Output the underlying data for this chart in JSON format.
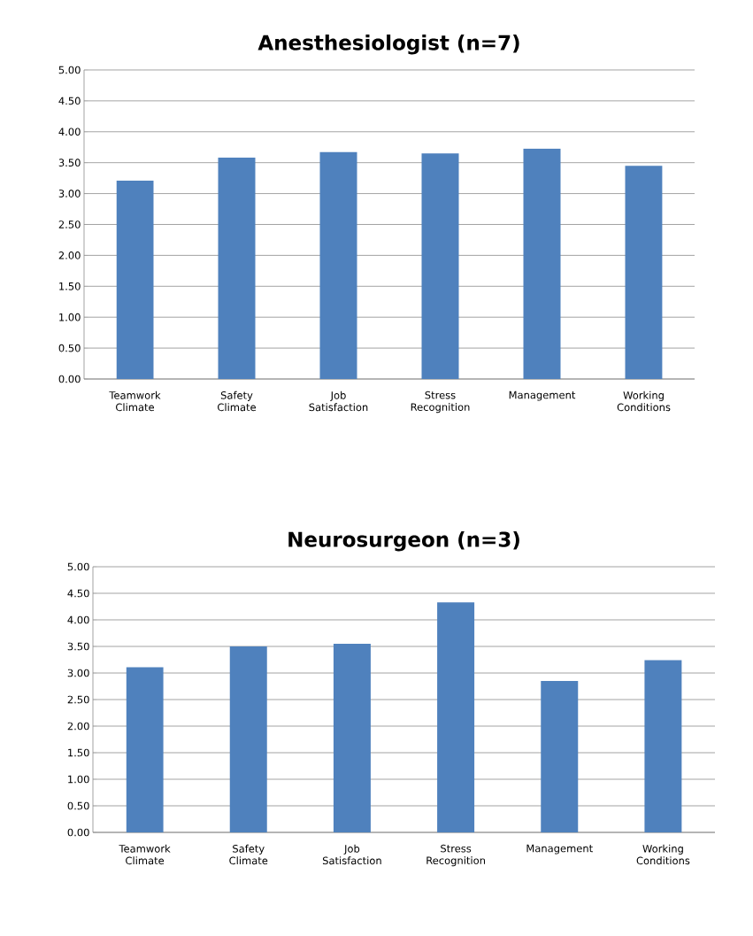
{
  "chart_data": [
    {
      "type": "bar",
      "title": "Anesthesiologist (n=7)",
      "categories": [
        "Teamwork Climate",
        "Safety Climate",
        "Job Satisfaction",
        "Stress Recognition",
        "Management",
        "Working Conditions"
      ],
      "values": [
        3.21,
        3.58,
        3.67,
        3.65,
        3.73,
        3.45
      ],
      "color": "#4f81bd",
      "ylim": [
        0,
        5
      ],
      "yticks": [
        {
          "value": 0,
          "label": "0.00"
        },
        {
          "value": 0.5,
          "label": "0.50"
        },
        {
          "value": 1,
          "label": "1.00"
        },
        {
          "value": 1.5,
          "label": "1.50"
        },
        {
          "value": 2,
          "label": "2.00"
        },
        {
          "value": 2.5,
          "label": "2.50"
        },
        {
          "value": 3,
          "label": "3.00"
        },
        {
          "value": 3.5,
          "label": "3.50"
        },
        {
          "value": 4,
          "label": "4.00"
        },
        {
          "value": 4.5,
          "label": "4.50"
        },
        {
          "value": 5,
          "label": "5.00"
        }
      ],
      "grid": "y"
    },
    {
      "type": "bar",
      "title": "Neurosurgeon (n=3)",
      "categories": [
        "Teamwork Climate",
        "Safety Climate",
        "Job Satisfaction",
        "Stress Recognition",
        "Management",
        "Working Conditions"
      ],
      "values": [
        3.11,
        3.5,
        3.55,
        4.33,
        2.85,
        3.24
      ],
      "color": "#4f81bd",
      "ylim": [
        0,
        5
      ],
      "yticks": [
        {
          "value": 0,
          "label": "0.00"
        },
        {
          "value": 0.5,
          "label": "0.50"
        },
        {
          "value": 1,
          "label": "1.00"
        },
        {
          "value": 1.5,
          "label": "1.50"
        },
        {
          "value": 2,
          "label": "2.00"
        },
        {
          "value": 2.5,
          "label": "2.50"
        },
        {
          "value": 3,
          "label": "3.00"
        },
        {
          "value": 3.5,
          "label": "3.50"
        },
        {
          "value": 4,
          "label": "4.00"
        },
        {
          "value": 4.5,
          "label": "4.50"
        },
        {
          "value": 5,
          "label": "5.00"
        }
      ],
      "grid": "y"
    }
  ]
}
